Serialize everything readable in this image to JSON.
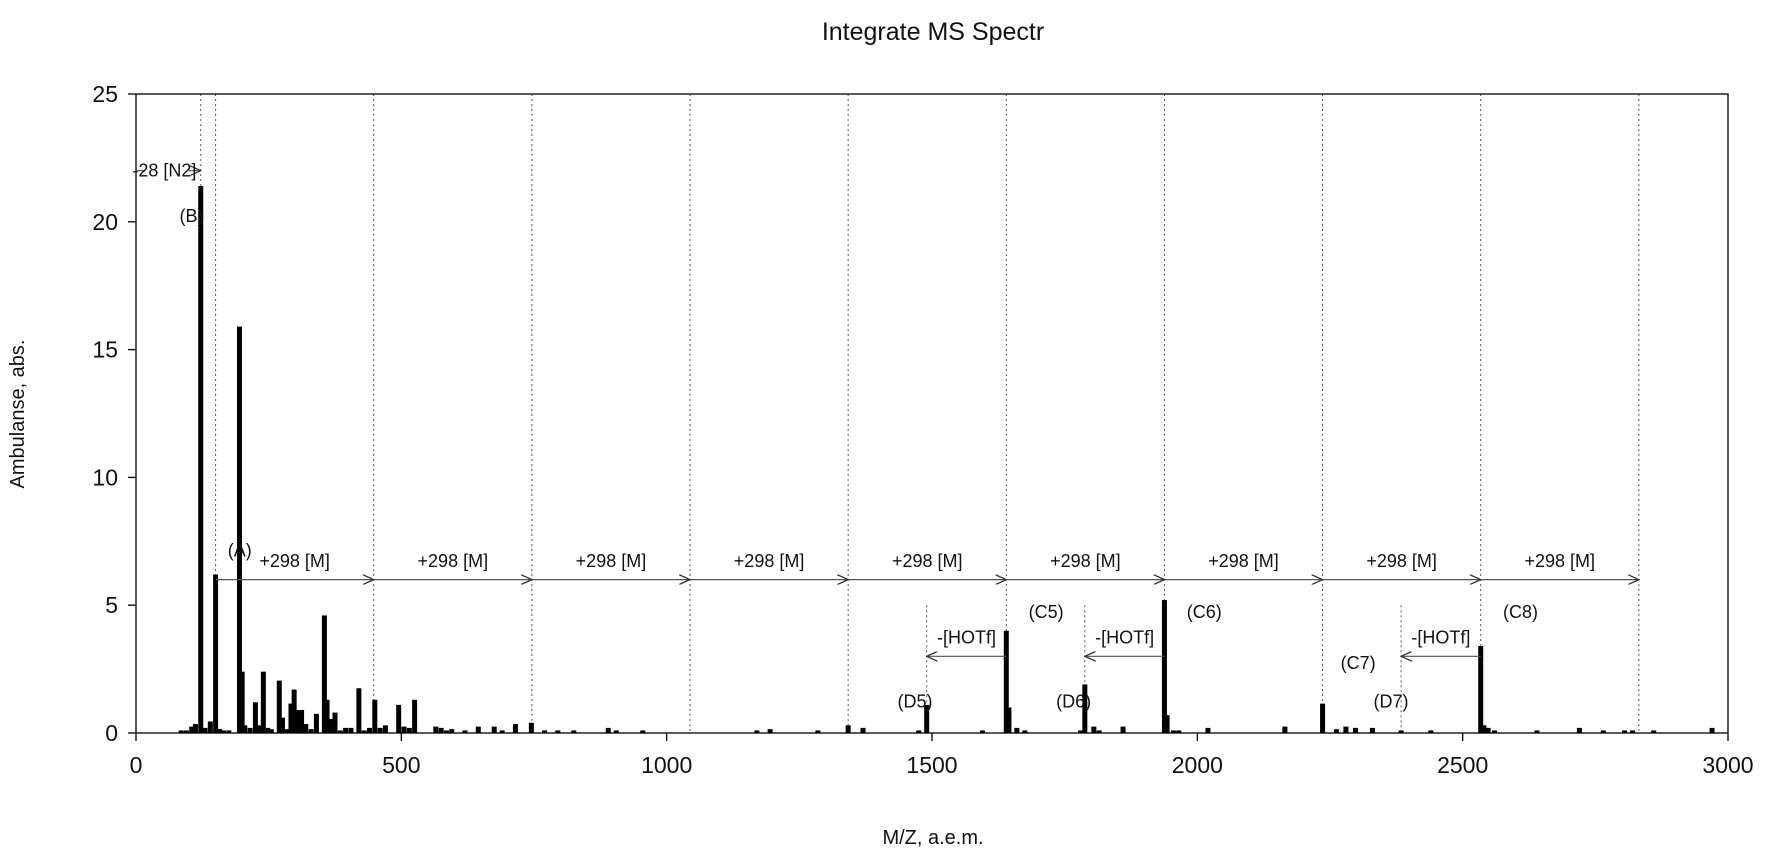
{
  "chart_data": {
    "type": "bar",
    "title": "Integrate MS Spectr",
    "xlabel": "M/Z, a.e.m.",
    "ylabel": "Ambulanse, abs.",
    "xlim": [
      0,
      3000
    ],
    "ylim": [
      0,
      25
    ],
    "x_ticks": [
      0,
      500,
      1000,
      1500,
      2000,
      2500,
      3000
    ],
    "y_ticks": [
      0,
      5,
      10,
      15,
      20,
      25
    ],
    "grid": "vertical dotted reference lines",
    "reference_lines_x": [
      122,
      150,
      448,
      746,
      1044,
      1342,
      1640,
      1938,
      2236,
      2534,
      2832
    ],
    "reference_lines_short_x": [
      1490,
      1788,
      2384
    ],
    "peaks": [
      {
        "x": 85,
        "y": 0.1
      },
      {
        "x": 95,
        "y": 0.1
      },
      {
        "x": 105,
        "y": 0.25
      },
      {
        "x": 112,
        "y": 0.35
      },
      {
        "x": 122,
        "y": 21.4
      },
      {
        "x": 130,
        "y": 0.2
      },
      {
        "x": 140,
        "y": 0.45
      },
      {
        "x": 150,
        "y": 6.2
      },
      {
        "x": 158,
        "y": 0.15
      },
      {
        "x": 165,
        "y": 0.1
      },
      {
        "x": 175,
        "y": 0.1
      },
      {
        "x": 195,
        "y": 15.9
      },
      {
        "x": 200,
        "y": 2.4
      },
      {
        "x": 205,
        "y": 0.3
      },
      {
        "x": 215,
        "y": 0.2
      },
      {
        "x": 225,
        "y": 1.2
      },
      {
        "x": 232,
        "y": 0.3
      },
      {
        "x": 240,
        "y": 2.4
      },
      {
        "x": 248,
        "y": 0.2
      },
      {
        "x": 255,
        "y": 0.15
      },
      {
        "x": 270,
        "y": 2.05
      },
      {
        "x": 276,
        "y": 0.6
      },
      {
        "x": 285,
        "y": 0.15
      },
      {
        "x": 292,
        "y": 1.15
      },
      {
        "x": 298,
        "y": 1.7
      },
      {
        "x": 305,
        "y": 0.9
      },
      {
        "x": 312,
        "y": 0.9
      },
      {
        "x": 320,
        "y": 0.35
      },
      {
        "x": 330,
        "y": 0.15
      },
      {
        "x": 340,
        "y": 0.75
      },
      {
        "x": 355,
        "y": 4.6
      },
      {
        "x": 360,
        "y": 1.3
      },
      {
        "x": 368,
        "y": 0.55
      },
      {
        "x": 375,
        "y": 0.8
      },
      {
        "x": 385,
        "y": 0.1
      },
      {
        "x": 395,
        "y": 0.2
      },
      {
        "x": 405,
        "y": 0.2
      },
      {
        "x": 420,
        "y": 1.75
      },
      {
        "x": 430,
        "y": 0.1
      },
      {
        "x": 440,
        "y": 0.2
      },
      {
        "x": 450,
        "y": 1.3
      },
      {
        "x": 460,
        "y": 0.2
      },
      {
        "x": 470,
        "y": 0.3
      },
      {
        "x": 495,
        "y": 1.1
      },
      {
        "x": 505,
        "y": 0.25
      },
      {
        "x": 515,
        "y": 0.2
      },
      {
        "x": 525,
        "y": 1.3
      },
      {
        "x": 565,
        "y": 0.25
      },
      {
        "x": 575,
        "y": 0.2
      },
      {
        "x": 585,
        "y": 0.1
      },
      {
        "x": 595,
        "y": 0.15
      },
      {
        "x": 620,
        "y": 0.1
      },
      {
        "x": 645,
        "y": 0.25
      },
      {
        "x": 675,
        "y": 0.25
      },
      {
        "x": 690,
        "y": 0.1
      },
      {
        "x": 715,
        "y": 0.35
      },
      {
        "x": 745,
        "y": 0.4
      },
      {
        "x": 770,
        "y": 0.1
      },
      {
        "x": 795,
        "y": 0.1
      },
      {
        "x": 825,
        "y": 0.1
      },
      {
        "x": 890,
        "y": 0.2
      },
      {
        "x": 905,
        "y": 0.1
      },
      {
        "x": 955,
        "y": 0.1
      },
      {
        "x": 1170,
        "y": 0.1
      },
      {
        "x": 1195,
        "y": 0.15
      },
      {
        "x": 1285,
        "y": 0.1
      },
      {
        "x": 1342,
        "y": 0.3
      },
      {
        "x": 1370,
        "y": 0.2
      },
      {
        "x": 1475,
        "y": 0.1
      },
      {
        "x": 1490,
        "y": 1.1
      },
      {
        "x": 1595,
        "y": 0.1
      },
      {
        "x": 1640,
        "y": 4.0
      },
      {
        "x": 1645,
        "y": 1.0
      },
      {
        "x": 1660,
        "y": 0.2
      },
      {
        "x": 1675,
        "y": 0.1
      },
      {
        "x": 1780,
        "y": 0.1
      },
      {
        "x": 1788,
        "y": 1.9
      },
      {
        "x": 1805,
        "y": 0.25
      },
      {
        "x": 1815,
        "y": 0.1
      },
      {
        "x": 1860,
        "y": 0.25
      },
      {
        "x": 1938,
        "y": 5.2
      },
      {
        "x": 1943,
        "y": 0.7
      },
      {
        "x": 1955,
        "y": 0.1
      },
      {
        "x": 1965,
        "y": 0.1
      },
      {
        "x": 2020,
        "y": 0.2
      },
      {
        "x": 2165,
        "y": 0.25
      },
      {
        "x": 2236,
        "y": 1.15
      },
      {
        "x": 2262,
        "y": 0.15
      },
      {
        "x": 2280,
        "y": 0.25
      },
      {
        "x": 2298,
        "y": 0.2
      },
      {
        "x": 2330,
        "y": 0.2
      },
      {
        "x": 2384,
        "y": 0.1
      },
      {
        "x": 2440,
        "y": 0.1
      },
      {
        "x": 2534,
        "y": 3.4
      },
      {
        "x": 2540,
        "y": 0.3
      },
      {
        "x": 2548,
        "y": 0.2
      },
      {
        "x": 2560,
        "y": 0.1
      },
      {
        "x": 2640,
        "y": 0.1
      },
      {
        "x": 2720,
        "y": 0.2
      },
      {
        "x": 2765,
        "y": 0.1
      },
      {
        "x": 2805,
        "y": 0.1
      },
      {
        "x": 2820,
        "y": 0.1
      },
      {
        "x": 2860,
        "y": 0.1
      },
      {
        "x": 2970,
        "y": 0.2
      }
    ],
    "peak_labels": [
      {
        "text": "(B)",
        "x": 82,
        "y": 20.0
      },
      {
        "text": "(A)",
        "x": 173,
        "y": 6.9
      },
      {
        "text": "(D5)",
        "x": 1435,
        "y": 1.0
      },
      {
        "text": "(C5)",
        "x": 1682,
        "y": 4.5
      },
      {
        "text": "(D6)",
        "x": 1734,
        "y": 1.0
      },
      {
        "text": "(C6)",
        "x": 1980,
        "y": 4.5
      },
      {
        "text": "(C7)",
        "x": 2270,
        "y": 2.5
      },
      {
        "text": "(D7)",
        "x": 2332,
        "y": 1.0
      },
      {
        "text": "(C8)",
        "x": 2576,
        "y": 4.5
      }
    ],
    "mass_steps": [
      {
        "text": "+298 [M]",
        "x_from": 150,
        "x_to": 448,
        "y": 6.0,
        "label_y": 6.5
      },
      {
        "text": "+298 [M]",
        "x_from": 448,
        "x_to": 746,
        "y": 6.0,
        "label_y": 6.5
      },
      {
        "text": "+298 [M]",
        "x_from": 746,
        "x_to": 1044,
        "y": 6.0,
        "label_y": 6.5
      },
      {
        "text": "+298 [M]",
        "x_from": 1044,
        "x_to": 1342,
        "y": 6.0,
        "label_y": 6.5
      },
      {
        "text": "+298 [M]",
        "x_from": 1342,
        "x_to": 1640,
        "y": 6.0,
        "label_y": 6.5
      },
      {
        "text": "+298 [M]",
        "x_from": 1640,
        "x_to": 1938,
        "y": 6.0,
        "label_y": 6.5
      },
      {
        "text": "+298 [M]",
        "x_from": 1938,
        "x_to": 2236,
        "y": 6.0,
        "label_y": 6.5
      },
      {
        "text": "+298 [M]",
        "x_from": 2236,
        "x_to": 2534,
        "y": 6.0,
        "label_y": 6.5
      },
      {
        "text": "+298 [M]",
        "x_from": 2534,
        "x_to": 2832,
        "y": 6.0,
        "label_y": 6.5
      }
    ],
    "loss_steps": [
      {
        "text": "-[HOTf]",
        "x_from": 1640,
        "x_to": 1490,
        "y": 3.0,
        "label_y": 3.5
      },
      {
        "text": "-[HOTf]",
        "x_from": 1938,
        "x_to": 1788,
        "y": 3.0,
        "label_y": 3.5
      },
      {
        "text": "-[HOTf]",
        "x_from": 2534,
        "x_to": 2384,
        "y": 3.0,
        "label_y": 3.5
      }
    ],
    "n2_loss": {
      "text": "-28 [N2]",
      "x_from": 0,
      "x_to": 122,
      "y": 22.0
    }
  }
}
